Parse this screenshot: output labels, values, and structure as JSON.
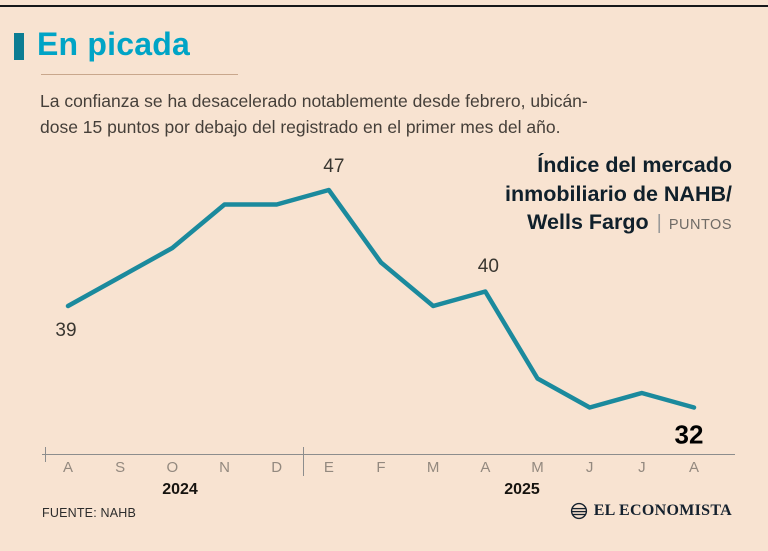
{
  "header": {
    "title": "En picada"
  },
  "subtitle": {
    "line1": "La confianza se ha desacelerado notablemente desde febrero, ubicán-",
    "line2": "dose 15 puntos por debajo del registrado en el primer mes del año."
  },
  "legend": {
    "line1": "Índice del mercado",
    "line2": "inmobiliario de NAHB/",
    "line3_bold": "Wells Fargo",
    "separator": "|",
    "units": "PUNTOS"
  },
  "chart_data": {
    "type": "line",
    "title": "Índice del mercado inmobiliario de NAHB/Wells Fargo",
    "ylabel": "PUNTOS",
    "categories": [
      "A",
      "S",
      "O",
      "N",
      "D",
      "E",
      "F",
      "M",
      "A",
      "M",
      "J",
      "J",
      "A"
    ],
    "values": [
      39,
      41,
      43,
      46,
      46,
      47,
      42,
      39,
      40,
      34,
      32,
      33,
      32
    ],
    "ylim": [
      30,
      50
    ],
    "grid": false,
    "legend_position": "top-right",
    "line_color": "#1b8a9d",
    "annotated_points": [
      {
        "index": 0,
        "label": "39",
        "emphasis": false
      },
      {
        "index": 5,
        "label": "47",
        "emphasis": false
      },
      {
        "index": 8,
        "label": "40",
        "emphasis": false
      },
      {
        "index": 12,
        "label": "32",
        "emphasis": true
      }
    ],
    "x_groups": [
      {
        "label": "2024"
      },
      {
        "label": "2025"
      }
    ]
  },
  "footer": {
    "source": "FUENTE: NAHB",
    "brand": "EL ECONOMISTA"
  },
  "colors": {
    "background": "#f8e3d1",
    "accent_teal": "#00a4c6",
    "bar_teal": "#0c7d93",
    "line_teal": "#1b8a9d",
    "muted": "#93897f"
  }
}
